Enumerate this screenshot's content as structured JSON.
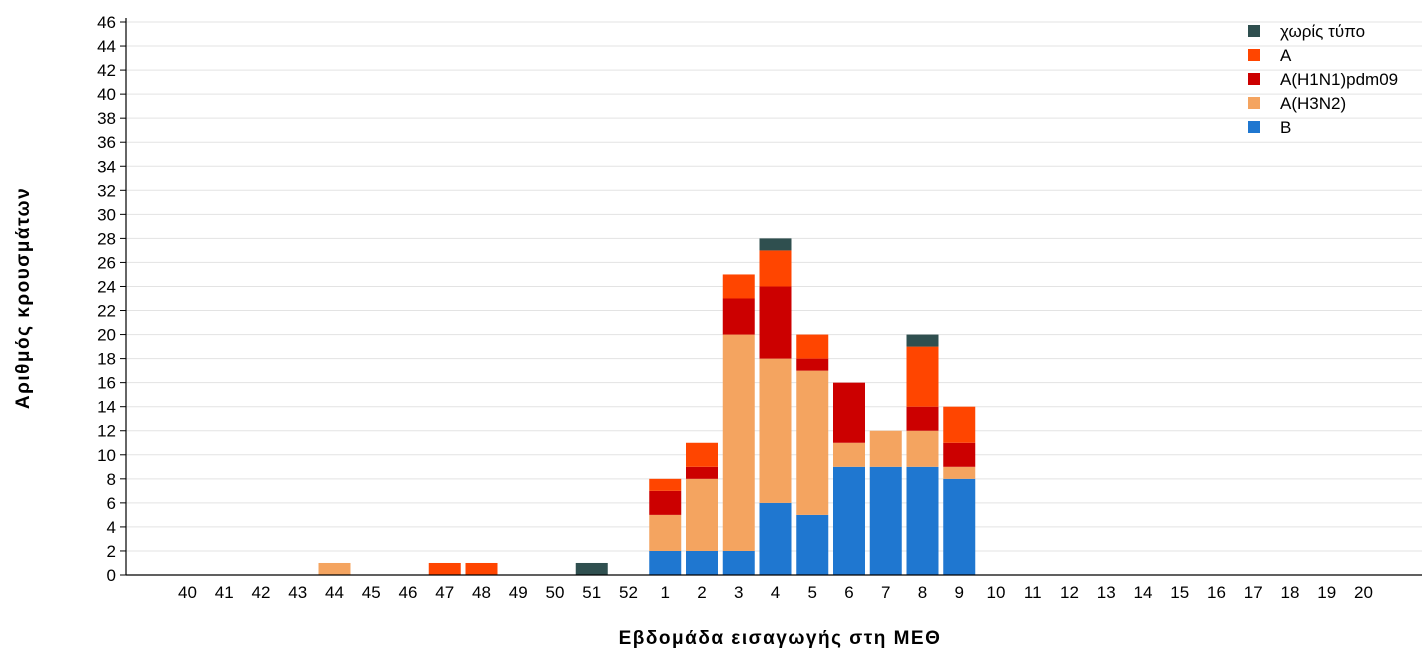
{
  "chart_data": {
    "type": "bar",
    "stacked": true,
    "xlabel": "Εβδομάδα εισαγωγής στη ΜΕΘ",
    "ylabel": "Αριθμός κρουσμάτων",
    "ylim": [
      0,
      46
    ],
    "ytick_step": 2,
    "grid": "horizontal",
    "legend_position": "top-right",
    "categories": [
      "40",
      "41",
      "42",
      "43",
      "44",
      "45",
      "46",
      "47",
      "48",
      "49",
      "50",
      "51",
      "52",
      "1",
      "2",
      "3",
      "4",
      "5",
      "6",
      "7",
      "8",
      "9",
      "10",
      "11",
      "12",
      "13",
      "14",
      "15",
      "16",
      "17",
      "18",
      "19",
      "20"
    ],
    "series": [
      {
        "name": "B",
        "color": "#1f77d0",
        "values": [
          0,
          0,
          0,
          0,
          0,
          0,
          0,
          0,
          0,
          0,
          0,
          0,
          0,
          2,
          2,
          2,
          6,
          5,
          9,
          9,
          9,
          8,
          0,
          0,
          0,
          0,
          0,
          0,
          0,
          0,
          0,
          0,
          0
        ]
      },
      {
        "name": "A(H3N2)",
        "color": "#f4a460",
        "values": [
          0,
          0,
          0,
          0,
          1,
          0,
          0,
          0,
          0,
          0,
          0,
          0,
          0,
          3,
          6,
          18,
          12,
          12,
          2,
          3,
          3,
          1,
          0,
          0,
          0,
          0,
          0,
          0,
          0,
          0,
          0,
          0,
          0
        ]
      },
      {
        "name": "A(H1N1)pdm09",
        "color": "#cc0000",
        "values": [
          0,
          0,
          0,
          0,
          0,
          0,
          0,
          0,
          0,
          0,
          0,
          0,
          0,
          2,
          1,
          3,
          6,
          1,
          5,
          0,
          2,
          2,
          0,
          0,
          0,
          0,
          0,
          0,
          0,
          0,
          0,
          0,
          0
        ]
      },
      {
        "name": "A",
        "color": "#ff4500",
        "values": [
          0,
          0,
          0,
          0,
          0,
          0,
          0,
          1,
          1,
          0,
          0,
          0,
          0,
          1,
          2,
          2,
          3,
          2,
          0,
          0,
          5,
          3,
          0,
          0,
          0,
          0,
          0,
          0,
          0,
          0,
          0,
          0,
          0
        ]
      },
      {
        "name": "χωρίς τύπο",
        "color": "#2f4f4f",
        "values": [
          0,
          0,
          0,
          0,
          0,
          0,
          0,
          0,
          0,
          0,
          0,
          1,
          0,
          0,
          0,
          0,
          1,
          0,
          0,
          0,
          1,
          0,
          0,
          0,
          0,
          0,
          0,
          0,
          0,
          0,
          0,
          0,
          0
        ]
      }
    ],
    "legend_order": [
      "χωρίς τύπο",
      "A",
      "A(H1N1)pdm09",
      "A(H3N2)",
      "B"
    ]
  }
}
